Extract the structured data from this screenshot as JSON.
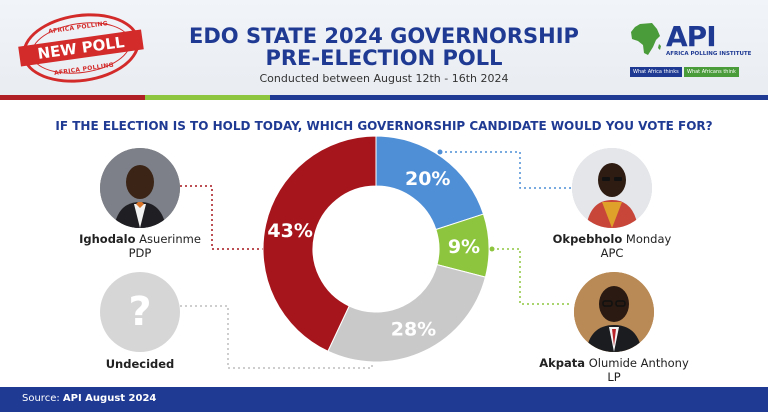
{
  "header": {
    "stamp_top": "AFRICA POLLING",
    "stamp_main": "NEW POLL",
    "stamp_bottom": "AFRICA POLLING",
    "title_line1": "EDO STATE 2024 GOVERNORSHIP",
    "title_line2": "PRE-ELECTION POLL",
    "subtitle": "Conducted between August 12th - 16th 2024",
    "logo_name": "API",
    "logo_tagline": "AFRICA POLLING INSTITUTE",
    "logo_tag_left": "What Africa thinks",
    "logo_tag_right": "What Africans think"
  },
  "question": "IF THE ELECTION IS TO HOLD TODAY, WHICH GOVERNORSHIP CANDIDATE WOULD YOU VOTE FOR?",
  "candidates": {
    "ighodalo": {
      "bold": "Ighodalo",
      "rest": " Asuerinme",
      "party": "PDP"
    },
    "okpebholo": {
      "bold": "Okpebholo",
      "rest": " Monday",
      "party": "APC"
    },
    "akpata": {
      "bold": "Akpata",
      "rest": " Olumide Anthony",
      "party": "LP"
    },
    "undecided": {
      "label": "Undecided",
      "symbol": "?"
    }
  },
  "chart_data": {
    "type": "pie",
    "donut": true,
    "categories": [
      "Okpebholo Monday (APC)",
      "Akpata Olumide Anthony (LP)",
      "Undecided",
      "Ighodalo Asuerinme (PDP)"
    ],
    "values": [
      20,
      9,
      28,
      43
    ],
    "labels": [
      "20%",
      "9%",
      "28%",
      "43%"
    ],
    "colors": [
      "#4f8fd6",
      "#8dc53e",
      "#c9c9c9",
      "#a6151c"
    ],
    "start_angle_deg": 0,
    "direction": "clockwise"
  },
  "footer": {
    "prefix": "Source: ",
    "source": "API August 2024"
  }
}
